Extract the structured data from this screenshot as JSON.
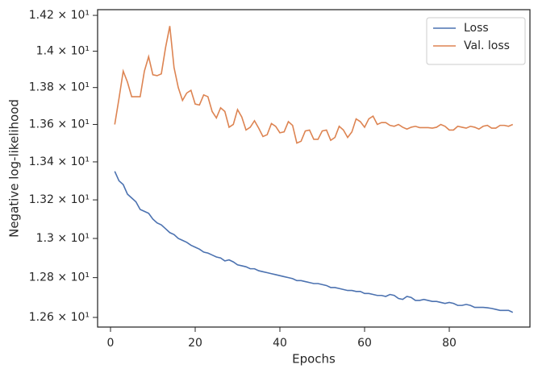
{
  "chart_data": {
    "type": "line",
    "xlabel": "Epochs",
    "ylabel": "Negative log-likelihood",
    "yscale": "log",
    "legend": "upper right",
    "grid": false,
    "xlim": [
      -3.05,
      99.05
    ],
    "ylim": [
      12.552,
      14.232
    ],
    "xticks": [
      0,
      20,
      40,
      60,
      80
    ],
    "yticks": [
      {
        "value": 12.6,
        "label": "1.26 × 10¹"
      },
      {
        "value": 12.8,
        "label": "1.28 × 10¹"
      },
      {
        "value": 13.0,
        "label": "1.3 × 10¹"
      },
      {
        "value": 13.2,
        "label": "1.32 × 10¹"
      },
      {
        "value": 13.4,
        "label": "1.34 × 10¹"
      },
      {
        "value": 13.6,
        "label": "1.36 × 10¹"
      },
      {
        "value": 13.8,
        "label": "1.38 × 10¹"
      },
      {
        "value": 14.0,
        "label": "1.4 × 10¹"
      },
      {
        "value": 14.2,
        "label": "1.42 × 10¹"
      }
    ],
    "x": [
      1,
      2,
      3,
      4,
      5,
      6,
      7,
      8,
      9,
      10,
      11,
      12,
      13,
      14,
      15,
      16,
      17,
      18,
      19,
      20,
      21,
      22,
      23,
      24,
      25,
      26,
      27,
      28,
      29,
      30,
      31,
      32,
      33,
      34,
      35,
      36,
      37,
      38,
      39,
      40,
      41,
      42,
      43,
      44,
      45,
      46,
      47,
      48,
      49,
      50,
      51,
      52,
      53,
      54,
      55,
      56,
      57,
      58,
      59,
      60,
      61,
      62,
      63,
      64,
      65,
      66,
      67,
      68,
      69,
      70,
      71,
      72,
      73,
      74,
      75,
      76,
      77,
      78,
      79,
      80,
      81,
      82,
      83,
      84,
      85,
      86,
      87,
      88,
      89,
      90,
      91,
      92,
      93,
      94,
      95
    ],
    "series": [
      {
        "name": "Loss",
        "color": "#4c72b0",
        "values": [
          13.35,
          13.3,
          13.28,
          13.23,
          13.21,
          13.19,
          13.15,
          13.14,
          13.13,
          13.1,
          13.08,
          13.07,
          13.05,
          13.03,
          13.02,
          13.0,
          12.99,
          12.98,
          12.965,
          12.955,
          12.945,
          12.93,
          12.925,
          12.915,
          12.905,
          12.9,
          12.885,
          12.89,
          12.88,
          12.865,
          12.86,
          12.855,
          12.845,
          12.845,
          12.835,
          12.83,
          12.825,
          12.82,
          12.815,
          12.81,
          12.805,
          12.8,
          12.795,
          12.785,
          12.785,
          12.78,
          12.775,
          12.77,
          12.77,
          12.765,
          12.76,
          12.75,
          12.75,
          12.745,
          12.74,
          12.735,
          12.735,
          12.73,
          12.73,
          12.72,
          12.72,
          12.715,
          12.71,
          12.71,
          12.705,
          12.715,
          12.71,
          12.695,
          12.69,
          12.705,
          12.7,
          12.685,
          12.685,
          12.69,
          12.685,
          12.68,
          12.68,
          12.675,
          12.67,
          12.675,
          12.67,
          12.66,
          12.66,
          12.665,
          12.66,
          12.65,
          12.65,
          12.65,
          12.648,
          12.645,
          12.64,
          12.635,
          12.635,
          12.635,
          12.625
        ]
      },
      {
        "name": "Val. loss",
        "color": "#dd8452",
        "values": [
          13.6,
          13.74,
          13.89,
          13.83,
          13.75,
          13.75,
          13.75,
          13.89,
          13.97,
          13.87,
          13.865,
          13.875,
          14.02,
          14.14,
          13.91,
          13.8,
          13.73,
          13.77,
          13.785,
          13.71,
          13.705,
          13.76,
          13.75,
          13.67,
          13.635,
          13.69,
          13.67,
          13.585,
          13.6,
          13.68,
          13.64,
          13.57,
          13.585,
          13.62,
          13.58,
          13.535,
          13.545,
          13.605,
          13.59,
          13.555,
          13.56,
          13.615,
          13.595,
          13.5,
          13.51,
          13.565,
          13.57,
          13.52,
          13.52,
          13.565,
          13.57,
          13.515,
          13.53,
          13.59,
          13.57,
          13.53,
          13.56,
          13.63,
          13.615,
          13.585,
          13.63,
          13.645,
          13.6,
          13.61,
          13.61,
          13.595,
          13.59,
          13.6,
          13.585,
          13.575,
          13.585,
          13.59,
          13.583,
          13.583,
          13.583,
          13.58,
          13.585,
          13.6,
          13.59,
          13.57,
          13.57,
          13.59,
          13.585,
          13.58,
          13.59,
          13.585,
          13.575,
          13.59,
          13.595,
          13.58,
          13.58,
          13.595,
          13.595,
          13.59,
          13.6
        ]
      }
    ]
  }
}
